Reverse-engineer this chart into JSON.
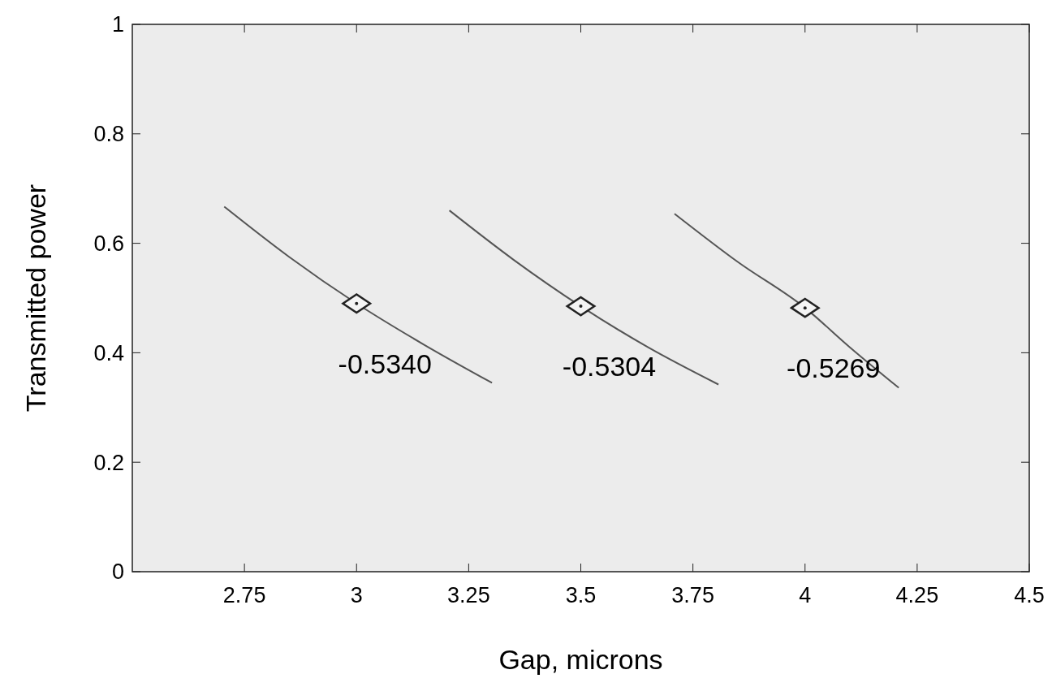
{
  "chart_data": {
    "type": "line",
    "xlabel": "Gap, microns",
    "ylabel": "Transmitted power",
    "xlim": [
      2.5,
      4.5
    ],
    "ylim": [
      0,
      1
    ],
    "xticks": [
      2.75,
      3,
      3.25,
      3.5,
      3.75,
      4,
      4.25,
      4.5
    ],
    "yticks": [
      0,
      0.2,
      0.4,
      0.6,
      0.8,
      1
    ],
    "grid": false,
    "marker": "none",
    "line_style": "solid",
    "series": [
      {
        "color": "#555555",
        "x": [
          2.705,
          2.85,
          3.0,
          3.15,
          3.302
        ],
        "values": [
          0.667,
          0.575,
          0.49,
          0.415,
          0.345
        ]
      },
      {
        "color": "#555555",
        "x": [
          3.207,
          3.35,
          3.5,
          3.65,
          3.807
        ],
        "values": [
          0.66,
          0.57,
          0.485,
          0.41,
          0.342
        ]
      },
      {
        "color": "#555555",
        "x": [
          3.709,
          3.85,
          4.0,
          4.1,
          4.209
        ],
        "values": [
          0.654,
          0.566,
          0.482,
          0.41,
          0.336
        ]
      },
      {
        "type": "scatter",
        "marker": "diamond",
        "color": "#222222",
        "x": [
          3.0,
          3.5,
          4.0
        ],
        "values": [
          0.49,
          0.485,
          0.482
        ]
      }
    ],
    "annotations": [
      {
        "text": "-0.5340",
        "x": 3.0,
        "y": 0.49
      },
      {
        "text": "-0.5304",
        "x": 3.5,
        "y": 0.485
      },
      {
        "text": "-0.5269",
        "x": 4.0,
        "y": 0.482
      }
    ]
  }
}
